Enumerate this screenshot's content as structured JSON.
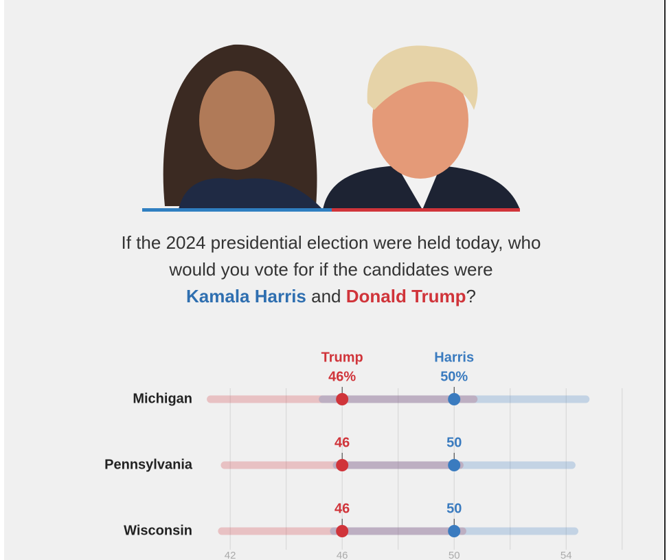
{
  "question": {
    "line1": "If the 2024 presidential election were held today, who",
    "line2": "would you vote for if the candidates were",
    "harris": "Kamala Harris",
    "and": "and",
    "trump": "Donald Trump",
    "end": "?"
  },
  "chart_data": {
    "type": "dot_range",
    "categories": [
      "Michigan",
      "Pennsylvania",
      "Wisconsin"
    ],
    "series": [
      {
        "name": "Trump",
        "color": "#d0343a",
        "values": [
          46,
          46,
          46
        ],
        "value_labels": [
          "46%",
          "46",
          "46"
        ],
        "low": [
          41.3,
          41.8,
          41.7
        ],
        "high": [
          50.7,
          50.2,
          50.3
        ]
      },
      {
        "name": "Harris",
        "color": "#3a7bbf",
        "values": [
          50,
          50,
          50
        ],
        "value_labels": [
          "50%",
          "50",
          "50"
        ],
        "low": [
          45.3,
          45.8,
          45.7
        ],
        "high": [
          54.7,
          54.2,
          54.3
        ]
      }
    ],
    "xlim": [
      40.5,
      56.3
    ],
    "xticks": [
      42,
      46,
      50,
      54
    ],
    "minor_xticks": [
      44,
      48,
      52,
      56
    ],
    "grid": true
  }
}
